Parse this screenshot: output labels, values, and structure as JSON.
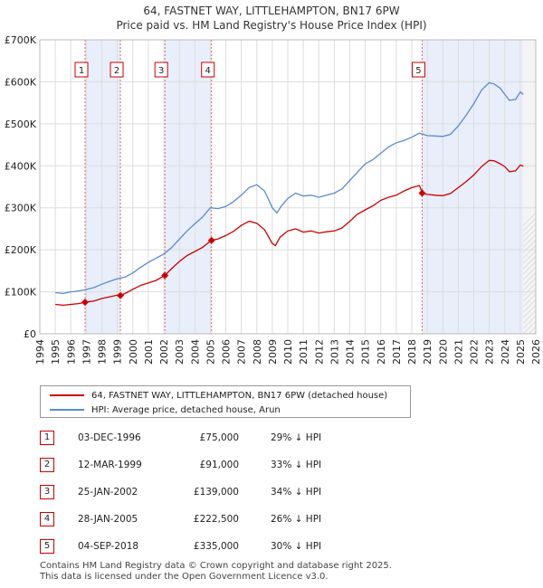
{
  "chart_data": {
    "type": "line",
    "title": "64, FASTNET WAY, LITTLEHAMPTON, BN17 6PW",
    "subtitle": "Price paid vs. HM Land Registry's House Price Index (HPI)",
    "xlim": [
      1994,
      2026
    ],
    "ylim": [
      0,
      700000
    ],
    "x_ticks": [
      "1994",
      "1995",
      "1996",
      "1997",
      "1998",
      "1999",
      "2000",
      "2001",
      "2002",
      "2003",
      "2004",
      "2005",
      "2006",
      "2007",
      "2008",
      "2009",
      "2010",
      "2011",
      "2012",
      "2013",
      "2014",
      "2015",
      "2016",
      "2017",
      "2018",
      "2019",
      "2020",
      "2021",
      "2022",
      "2023",
      "2024",
      "2025",
      "2026"
    ],
    "y_ticks": [
      {
        "value": 0,
        "label": "£0"
      },
      {
        "value": 100000,
        "label": "£100K"
      },
      {
        "value": 200000,
        "label": "£200K"
      },
      {
        "value": 300000,
        "label": "£300K"
      },
      {
        "value": 400000,
        "label": "£400K"
      },
      {
        "value": 500000,
        "label": "£500K"
      },
      {
        "value": 600000,
        "label": "£600K"
      },
      {
        "value": 700000,
        "label": "£700K"
      }
    ],
    "series": [
      {
        "name": "64, FASTNET WAY, LITTLEHAMPTON, BN17 6PW (detached house)",
        "color": "#cc0000",
        "points": [
          [
            1995.0,
            70000
          ],
          [
            1995.5,
            68000
          ],
          [
            1996.0,
            70000
          ],
          [
            1996.5,
            72000
          ],
          [
            1996.92,
            75000
          ],
          [
            1997.5,
            78000
          ],
          [
            1998.0,
            84000
          ],
          [
            1998.5,
            88000
          ],
          [
            1999.0,
            92000
          ],
          [
            1999.2,
            91000
          ],
          [
            1999.6,
            98000
          ],
          [
            2000.0,
            106000
          ],
          [
            2000.5,
            115000
          ],
          [
            2001.0,
            121000
          ],
          [
            2001.5,
            127000
          ],
          [
            2002.07,
            139000
          ],
          [
            2002.5,
            155000
          ],
          [
            2003.0,
            172000
          ],
          [
            2003.5,
            186000
          ],
          [
            2004.0,
            196000
          ],
          [
            2004.5,
            206000
          ],
          [
            2005.08,
            222500
          ],
          [
            2005.5,
            226000
          ],
          [
            2006.0,
            234000
          ],
          [
            2006.5,
            244000
          ],
          [
            2007.0,
            258000
          ],
          [
            2007.5,
            268000
          ],
          [
            2008.0,
            263000
          ],
          [
            2008.5,
            248000
          ],
          [
            2009.0,
            215000
          ],
          [
            2009.2,
            210000
          ],
          [
            2009.5,
            230000
          ],
          [
            2010.0,
            245000
          ],
          [
            2010.5,
            250000
          ],
          [
            2011.0,
            242000
          ],
          [
            2011.5,
            245000
          ],
          [
            2012.0,
            240000
          ],
          [
            2012.5,
            243000
          ],
          [
            2013.0,
            245000
          ],
          [
            2013.5,
            252000
          ],
          [
            2014.0,
            268000
          ],
          [
            2014.5,
            285000
          ],
          [
            2015.0,
            295000
          ],
          [
            2015.5,
            305000
          ],
          [
            2016.0,
            318000
          ],
          [
            2016.5,
            325000
          ],
          [
            2017.0,
            330000
          ],
          [
            2017.5,
            340000
          ],
          [
            2018.0,
            348000
          ],
          [
            2018.5,
            353000
          ],
          [
            2018.67,
            335000
          ],
          [
            2019.0,
            332000
          ],
          [
            2019.5,
            330000
          ],
          [
            2020.0,
            329000
          ],
          [
            2020.5,
            334000
          ],
          [
            2021.0,
            348000
          ],
          [
            2021.5,
            362000
          ],
          [
            2022.0,
            378000
          ],
          [
            2022.5,
            398000
          ],
          [
            2023.0,
            413000
          ],
          [
            2023.3,
            412000
          ],
          [
            2023.7,
            405000
          ],
          [
            2024.0,
            398000
          ],
          [
            2024.3,
            386000
          ],
          [
            2024.7,
            388000
          ],
          [
            2025.0,
            402000
          ],
          [
            2025.2,
            399000
          ]
        ]
      },
      {
        "name": "HPI: Average price, detached house, Arun",
        "color": "#5b8ccc",
        "points": [
          [
            1995.0,
            98000
          ],
          [
            1995.5,
            96000
          ],
          [
            1996.0,
            100000
          ],
          [
            1996.5,
            102000
          ],
          [
            1996.92,
            105000
          ],
          [
            1997.5,
            110000
          ],
          [
            1998.0,
            118000
          ],
          [
            1998.5,
            125000
          ],
          [
            1999.0,
            131000
          ],
          [
            1999.5,
            135000
          ],
          [
            2000.0,
            145000
          ],
          [
            2000.5,
            158000
          ],
          [
            2001.0,
            170000
          ],
          [
            2001.5,
            180000
          ],
          [
            2002.0,
            190000
          ],
          [
            2002.5,
            205000
          ],
          [
            2003.0,
            225000
          ],
          [
            2003.5,
            245000
          ],
          [
            2004.0,
            262000
          ],
          [
            2004.5,
            278000
          ],
          [
            2005.0,
            300000
          ],
          [
            2005.5,
            298000
          ],
          [
            2006.0,
            303000
          ],
          [
            2006.5,
            315000
          ],
          [
            2007.0,
            330000
          ],
          [
            2007.5,
            348000
          ],
          [
            2008.0,
            355000
          ],
          [
            2008.5,
            340000
          ],
          [
            2009.0,
            300000
          ],
          [
            2009.3,
            288000
          ],
          [
            2009.6,
            305000
          ],
          [
            2010.0,
            322000
          ],
          [
            2010.5,
            335000
          ],
          [
            2011.0,
            328000
          ],
          [
            2011.5,
            330000
          ],
          [
            2012.0,
            325000
          ],
          [
            2012.5,
            330000
          ],
          [
            2013.0,
            335000
          ],
          [
            2013.5,
            345000
          ],
          [
            2014.0,
            365000
          ],
          [
            2014.5,
            385000
          ],
          [
            2015.0,
            405000
          ],
          [
            2015.5,
            415000
          ],
          [
            2016.0,
            430000
          ],
          [
            2016.5,
            445000
          ],
          [
            2017.0,
            455000
          ],
          [
            2017.5,
            460000
          ],
          [
            2018.0,
            468000
          ],
          [
            2018.5,
            478000
          ],
          [
            2019.0,
            472000
          ],
          [
            2019.5,
            471000
          ],
          [
            2020.0,
            470000
          ],
          [
            2020.5,
            475000
          ],
          [
            2021.0,
            495000
          ],
          [
            2021.5,
            520000
          ],
          [
            2022.0,
            548000
          ],
          [
            2022.5,
            580000
          ],
          [
            2023.0,
            598000
          ],
          [
            2023.3,
            595000
          ],
          [
            2023.7,
            585000
          ],
          [
            2024.0,
            570000
          ],
          [
            2024.3,
            556000
          ],
          [
            2024.7,
            558000
          ],
          [
            2025.0,
            576000
          ],
          [
            2025.2,
            570000
          ]
        ]
      }
    ],
    "events": [
      {
        "label": "1",
        "x": 1996.92,
        "price": 75000
      },
      {
        "label": "2",
        "x": 1999.2,
        "price": 91000
      },
      {
        "label": "3",
        "x": 2002.07,
        "price": 139000
      },
      {
        "label": "4",
        "x": 2005.08,
        "price": 222500
      },
      {
        "label": "5",
        "x": 2018.67,
        "price": 335000
      }
    ]
  },
  "legend": {
    "property": "64, FASTNET WAY, LITTLEHAMPTON, BN17 6PW (detached house)",
    "hpi": "HPI: Average price, detached house, Arun"
  },
  "transactions": [
    {
      "num": "1",
      "date": "03-DEC-1996",
      "price": "£75,000",
      "hpi": "29% ↓ HPI"
    },
    {
      "num": "2",
      "date": "12-MAR-1999",
      "price": "£91,000",
      "hpi": "33% ↓ HPI"
    },
    {
      "num": "3",
      "date": "25-JAN-2002",
      "price": "£139,000",
      "hpi": "34% ↓ HPI"
    },
    {
      "num": "4",
      "date": "28-JAN-2005",
      "price": "£222,500",
      "hpi": "26% ↓ HPI"
    },
    {
      "num": "5",
      "date": "04-SEP-2018",
      "price": "£335,000",
      "hpi": "30% ↓ HPI"
    }
  ],
  "footer": {
    "line1": "Contains HM Land Registry data © Crown copyright and database right 2025.",
    "line2": "This data is licensed under the Open Government Licence v3.0."
  }
}
